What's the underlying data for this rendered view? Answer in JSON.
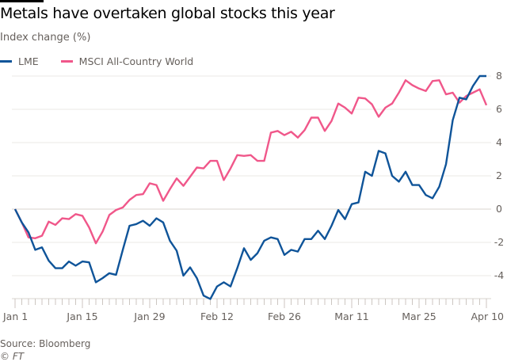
{
  "chart_data": {
    "type": "line",
    "title": "Metals have overtaken global stocks this year",
    "subtitle": "Index change (%)",
    "source": "Source: Bloomberg",
    "credit": "© FT",
    "xlabel": "",
    "ylabel": "",
    "x_tick_labels": [
      {
        "index": 0,
        "label": "Jan 1"
      },
      {
        "index": 10,
        "label": "Jan 15"
      },
      {
        "index": 20,
        "label": "Jan 29"
      },
      {
        "index": 30,
        "label": "Feb 12"
      },
      {
        "index": 40,
        "label": "Feb 26"
      },
      {
        "index": 50,
        "label": "Mar 11"
      },
      {
        "index": 60,
        "label": "Mar 25"
      },
      {
        "index": 70,
        "label": "Apr 10"
      }
    ],
    "ylim": [
      -5.4,
      8
    ],
    "y_ticks": [
      8,
      6,
      4,
      2,
      0,
      -2,
      -4
    ],
    "y_axis_side": "right",
    "grid": true,
    "legend_placement": "top-left",
    "series": [
      {
        "name": "LME",
        "color": "#0f5499",
        "values": [
          0,
          -0.8,
          -1.4,
          -2.45,
          -2.3,
          -3.1,
          -3.55,
          -3.55,
          -3.15,
          -3.4,
          -3.15,
          -3.2,
          -4.4,
          -4.15,
          -3.85,
          -3.95,
          -2.45,
          -1.0,
          -0.9,
          -0.7,
          -1.0,
          -0.55,
          -0.8,
          -1.9,
          -2.5,
          -4.0,
          -3.5,
          -4.15,
          -5.2,
          -5.4,
          -4.65,
          -4.4,
          -4.65,
          -3.55,
          -2.35,
          -3.05,
          -2.65,
          -1.9,
          -1.7,
          -1.8,
          -2.75,
          -2.45,
          -2.55,
          -1.8,
          -1.8,
          -1.3,
          -1.8,
          -1.0,
          -0.05,
          -0.6,
          0.3,
          0.4,
          2.25,
          2.0,
          3.5,
          3.35,
          2.0,
          1.65,
          2.25,
          1.45,
          1.45,
          0.85,
          0.65,
          1.35,
          2.7,
          5.35,
          6.7,
          6.6,
          7.4,
          8.0,
          8.0
        ]
      },
      {
        "name": "MSCI All-Country World",
        "color": "#f0578a",
        "values": [
          0,
          -0.8,
          -1.7,
          -1.75,
          -1.6,
          -0.75,
          -0.95,
          -0.55,
          -0.6,
          -0.3,
          -0.4,
          -1.1,
          -2.05,
          -1.35,
          -0.35,
          -0.05,
          0.1,
          0.55,
          0.85,
          0.9,
          1.55,
          1.45,
          0.5,
          1.2,
          1.85,
          1.4,
          1.95,
          2.5,
          2.45,
          2.9,
          2.9,
          1.75,
          2.45,
          3.25,
          3.2,
          3.25,
          2.9,
          2.9,
          4.6,
          4.7,
          4.45,
          4.65,
          4.3,
          4.75,
          5.5,
          5.5,
          4.7,
          5.3,
          6.35,
          6.1,
          5.75,
          6.7,
          6.65,
          6.3,
          5.55,
          6.1,
          6.35,
          7.0,
          7.75,
          7.45,
          7.25,
          7.1,
          7.7,
          7.75,
          6.9,
          7.0,
          6.4,
          6.8,
          7.0,
          7.2,
          6.25
        ]
      }
    ]
  }
}
